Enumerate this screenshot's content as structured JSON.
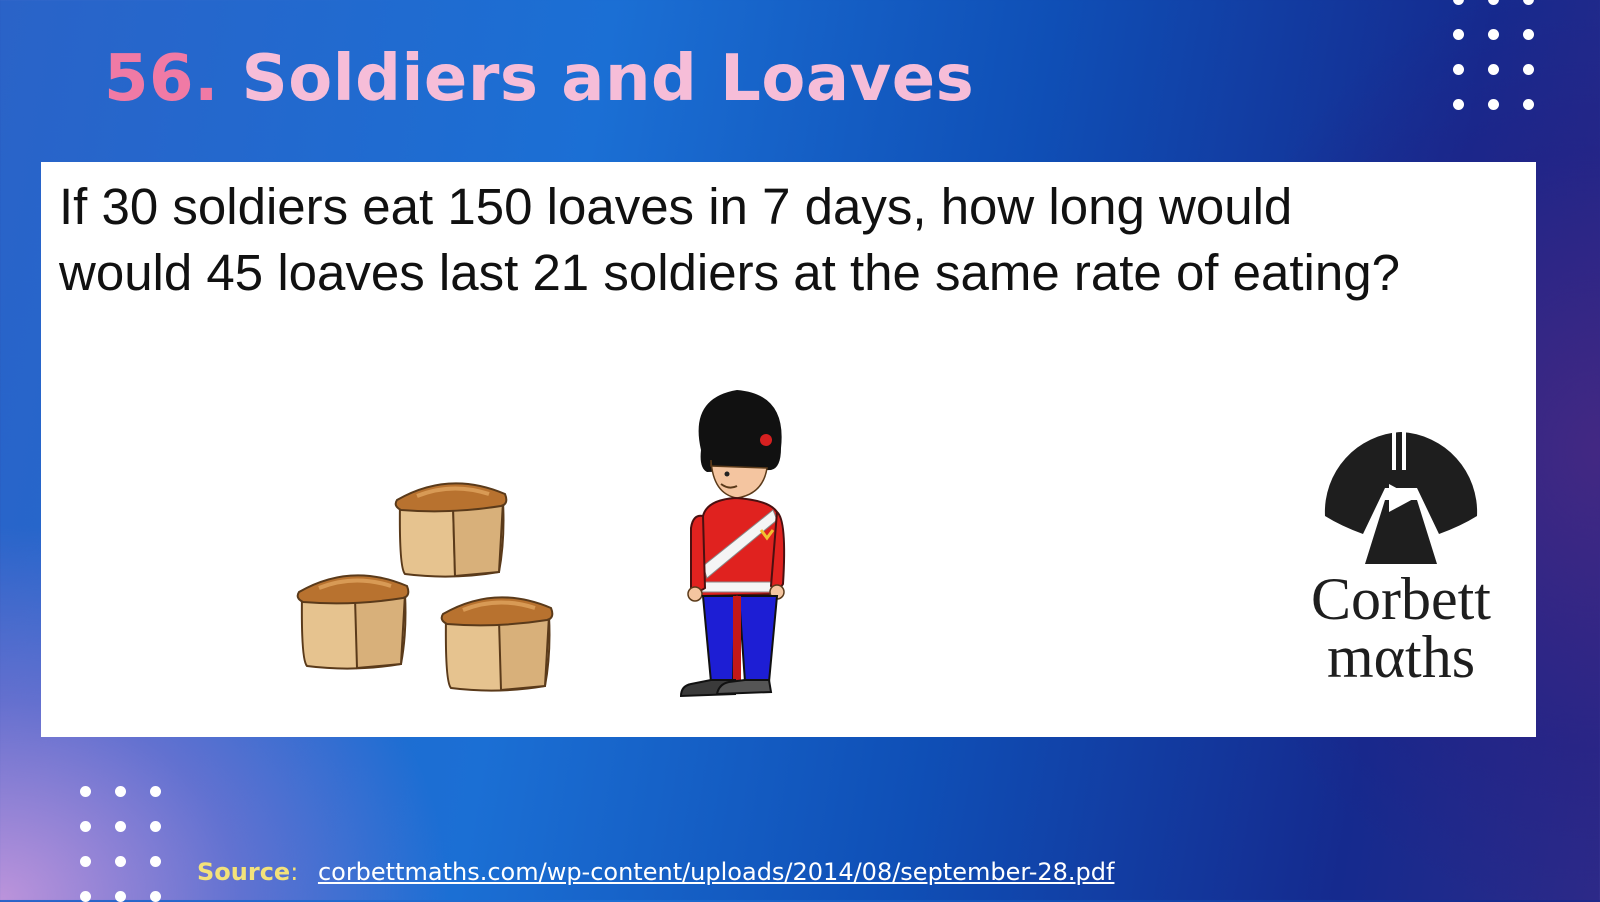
{
  "slide": {
    "number": "56.",
    "title": "Soldiers and Loaves"
  },
  "question": {
    "line1": "If 30 soldiers eat 150 loaves in 7 days, how long would",
    "line2": "would 45 loaves last 21 soldiers at the same rate of eating?"
  },
  "logo": {
    "line1": "Corbett",
    "line2": "mαths"
  },
  "source": {
    "label": "Source",
    "separator": ":",
    "link": "corbettmaths.com/wp-content/uploads/2014/08/september-28.pdf"
  },
  "colors": {
    "title_number": "#f07aa5",
    "title_text": "#f6bdd8",
    "source_label": "#f3e27a",
    "card_background": "#ffffff"
  },
  "icons": {
    "illustration_bread": "bread-loaf-icon",
    "illustration_soldier": "soldier-icon",
    "logo": "corbettmaths-logo"
  }
}
